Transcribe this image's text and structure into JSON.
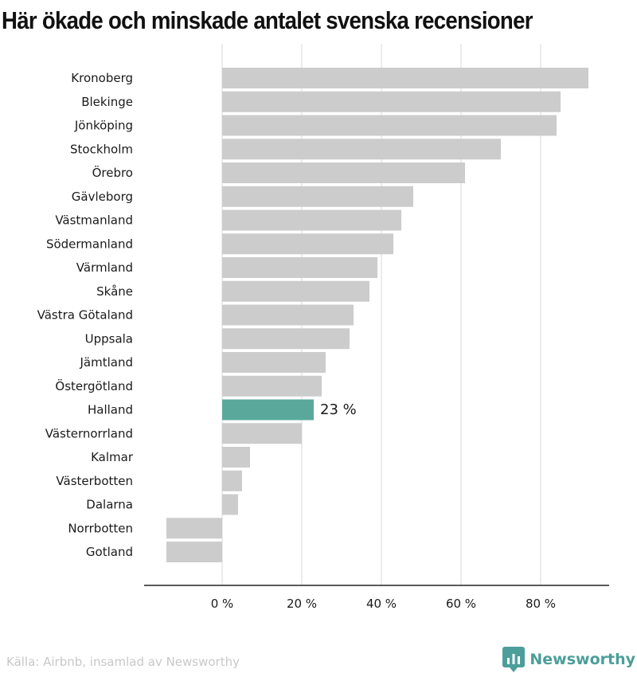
{
  "title": "Här ökade och minskade antalet svenska recensioner",
  "source": "Källa: Airbnb, insamlad av Newsworthy",
  "brand": {
    "name": "Newsworthy",
    "icon": "newsworthy-logo-icon"
  },
  "colors": {
    "bar": "#cccccc",
    "highlight": "#5aa89c",
    "grid": "#d9d9d9",
    "axis": "#222222",
    "text": "#1a1a1a",
    "source": "#c8c8c8",
    "brand": "#4c9e9a"
  },
  "chart_data": {
    "type": "bar",
    "orientation": "horizontal",
    "title": "Här ökade och minskade antalet svenska recensioner",
    "xlabel": "",
    "ylabel": "",
    "xlim": [
      -20,
      97
    ],
    "xticks": [
      0,
      20,
      40,
      60,
      80
    ],
    "tick_suffix": " %",
    "grid": true,
    "legend": "none",
    "categories": [
      "Kronoberg",
      "Blekinge",
      "Jönköping",
      "Stockholm",
      "Örebro",
      "Gävleborg",
      "Västmanland",
      "Södermanland",
      "Värmland",
      "Skåne",
      "Västra Götaland",
      "Uppsala",
      "Jämtland",
      "Östergötland",
      "Halland",
      "Västernorrland",
      "Kalmar",
      "Västerbotten",
      "Dalarna",
      "Norrbotten",
      "Gotland"
    ],
    "values": [
      92,
      85,
      84,
      70,
      61,
      48,
      45,
      43,
      39,
      37,
      33,
      32,
      26,
      25,
      23,
      20,
      7,
      5,
      4,
      -14,
      -14
    ],
    "highlight": "Halland",
    "annotations": [
      {
        "category": "Halland",
        "text": "23 %"
      }
    ]
  }
}
